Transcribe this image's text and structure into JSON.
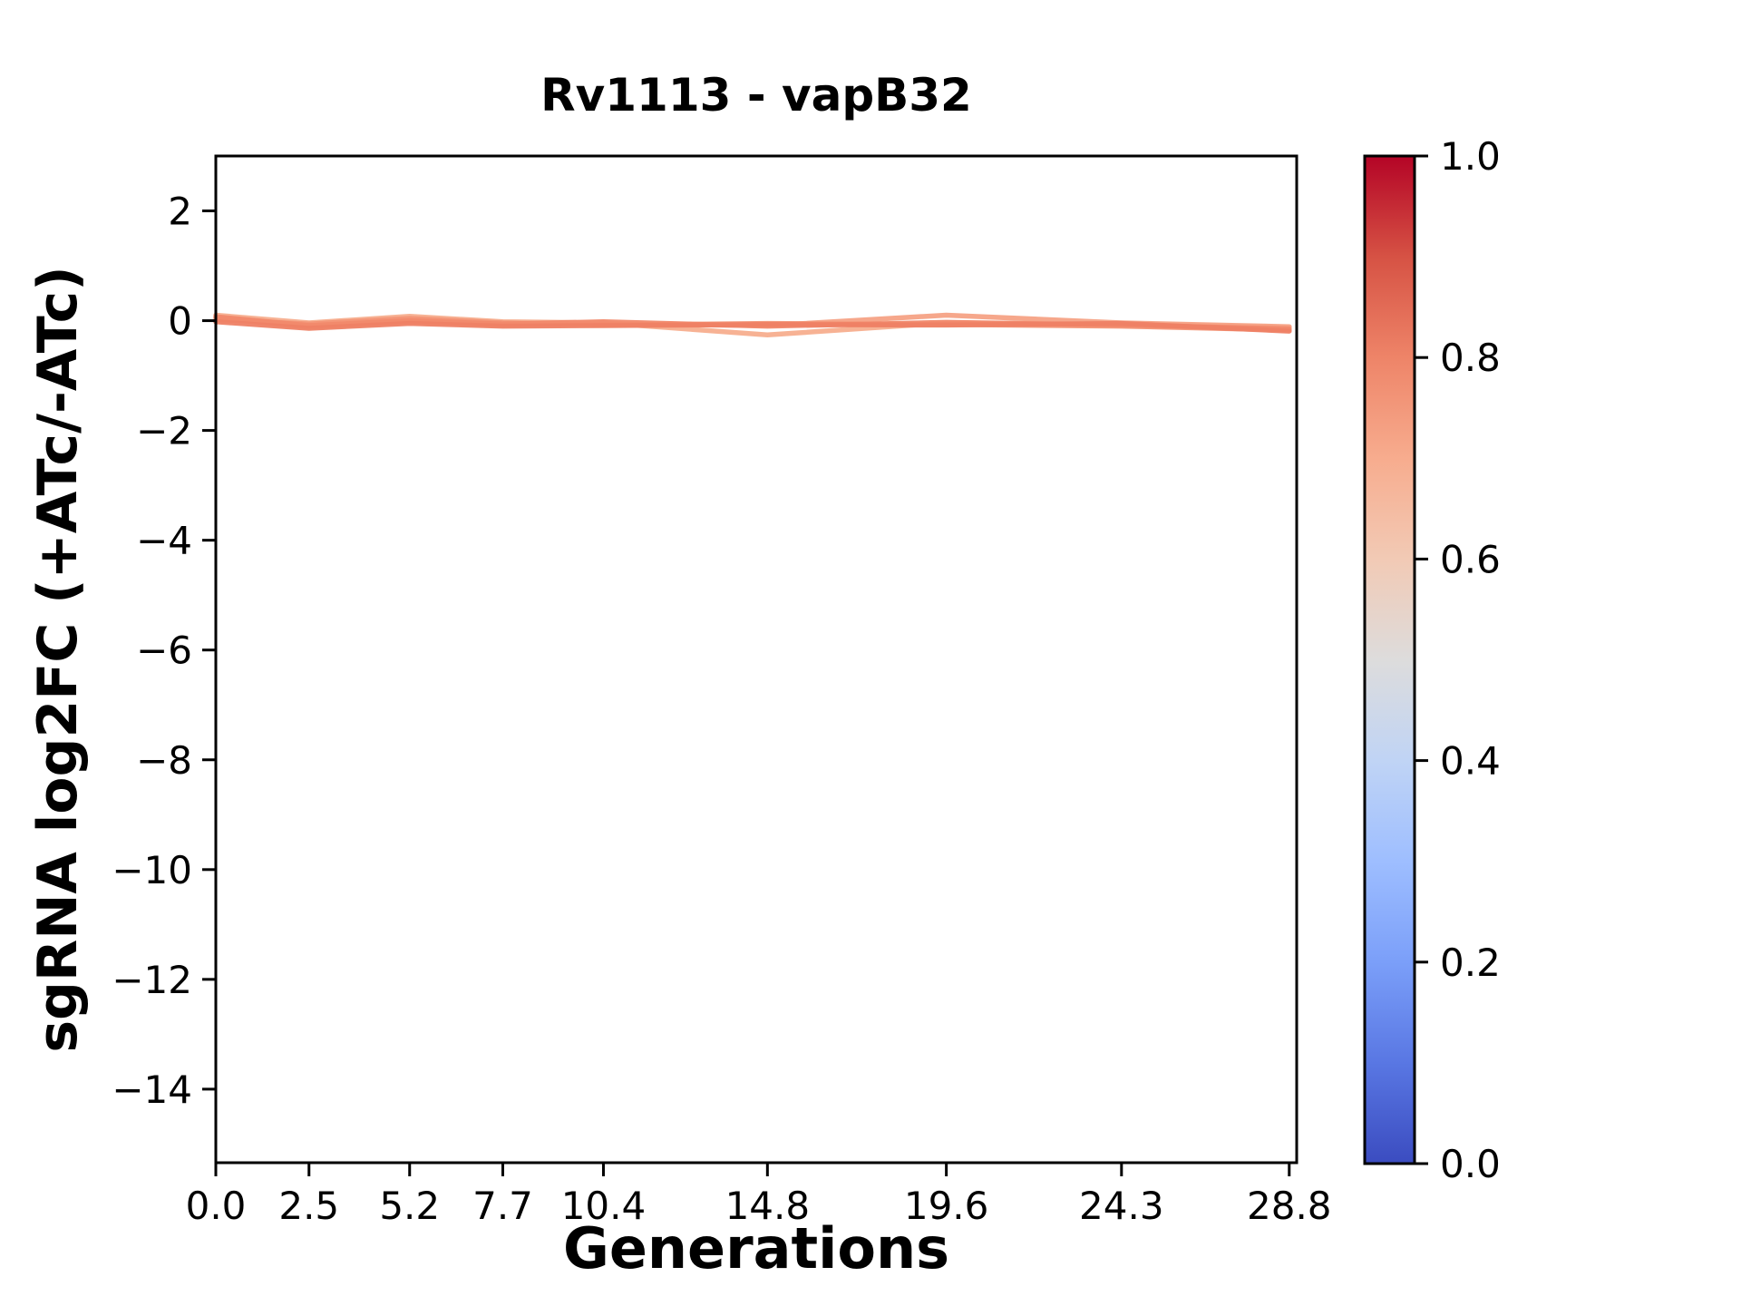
{
  "figure": {
    "background": "#ffffff",
    "spine_color": "#000000",
    "text_color": "#000000"
  },
  "chart_data": {
    "type": "line",
    "title": "Rv1113 - vapB32",
    "xlabel": "Generations",
    "ylabel": "sgRNA log2FC (+ATc/-ATc)",
    "grid": false,
    "legend": null,
    "xlim": [
      0,
      29.0
    ],
    "ylim": [
      -15.34,
      3.0
    ],
    "x": [
      0.0,
      2.5,
      5.2,
      7.7,
      10.4,
      14.8,
      19.6,
      24.3,
      28.8
    ],
    "series": [
      {
        "name": "line-1",
        "color": "#f7ae8e",
        "values": [
          0.1,
          -0.04,
          0.08,
          -0.02,
          -0.04,
          -0.26,
          -0.04,
          -0.06,
          -0.12
        ]
      },
      {
        "name": "line-2",
        "color": "#f5a285",
        "values": [
          0.05,
          -0.12,
          -0.02,
          -0.08,
          -0.06,
          -0.09,
          0.1,
          -0.04,
          -0.11
        ]
      },
      {
        "name": "line-3",
        "color": "#f39576",
        "values": [
          0.02,
          -0.06,
          0.04,
          -0.04,
          -0.08,
          -0.05,
          -0.07,
          -0.1,
          -0.17
        ]
      },
      {
        "name": "line-4",
        "color": "#f1896b",
        "values": [
          0.07,
          -0.09,
          0.0,
          -0.06,
          -0.02,
          -0.1,
          -0.03,
          -0.08,
          -0.15
        ]
      },
      {
        "name": "line-5",
        "color": "#ee8165",
        "values": [
          -0.02,
          -0.14,
          -0.05,
          -0.1,
          -0.09,
          -0.07,
          -0.08,
          -0.05,
          -0.19
        ]
      }
    ],
    "x_ticks": {
      "values": [
        0.0,
        2.5,
        5.2,
        7.7,
        10.4,
        14.8,
        19.6,
        24.3,
        28.8
      ],
      "labels": [
        "0.0",
        "2.5",
        "5.2",
        "7.7",
        "10.4",
        "14.8",
        "19.6",
        "24.3",
        "28.8"
      ]
    },
    "y_ticks": {
      "values": [
        2,
        0,
        -2,
        -4,
        -6,
        -8,
        -10,
        -12,
        -14
      ],
      "labels": [
        "2",
        "0",
        "−2",
        "−4",
        "−6",
        "−8",
        "−10",
        "−12",
        "−14"
      ]
    },
    "colorbar": {
      "colormap": "coolwarm",
      "range": [
        0.0,
        1.0
      ],
      "ticks": {
        "values": [
          1.0,
          0.8,
          0.6,
          0.4,
          0.2,
          0.0
        ],
        "labels": [
          "1.0",
          "0.8",
          "0.6",
          "0.4",
          "0.2",
          "0.0"
        ]
      },
      "stops": [
        {
          "pos": 0.0,
          "color": "#3b4cc0"
        },
        {
          "pos": 0.1,
          "color": "#5977e3"
        },
        {
          "pos": 0.2,
          "color": "#7b9ff9"
        },
        {
          "pos": 0.3,
          "color": "#9ebeff"
        },
        {
          "pos": 0.4,
          "color": "#c0d4f5"
        },
        {
          "pos": 0.5,
          "color": "#dddcdc"
        },
        {
          "pos": 0.6,
          "color": "#f2cab5"
        },
        {
          "pos": 0.7,
          "color": "#f7ac8e"
        },
        {
          "pos": 0.8,
          "color": "#ee8468"
        },
        {
          "pos": 0.9,
          "color": "#d65244"
        },
        {
          "pos": 1.0,
          "color": "#b40426"
        }
      ]
    }
  }
}
